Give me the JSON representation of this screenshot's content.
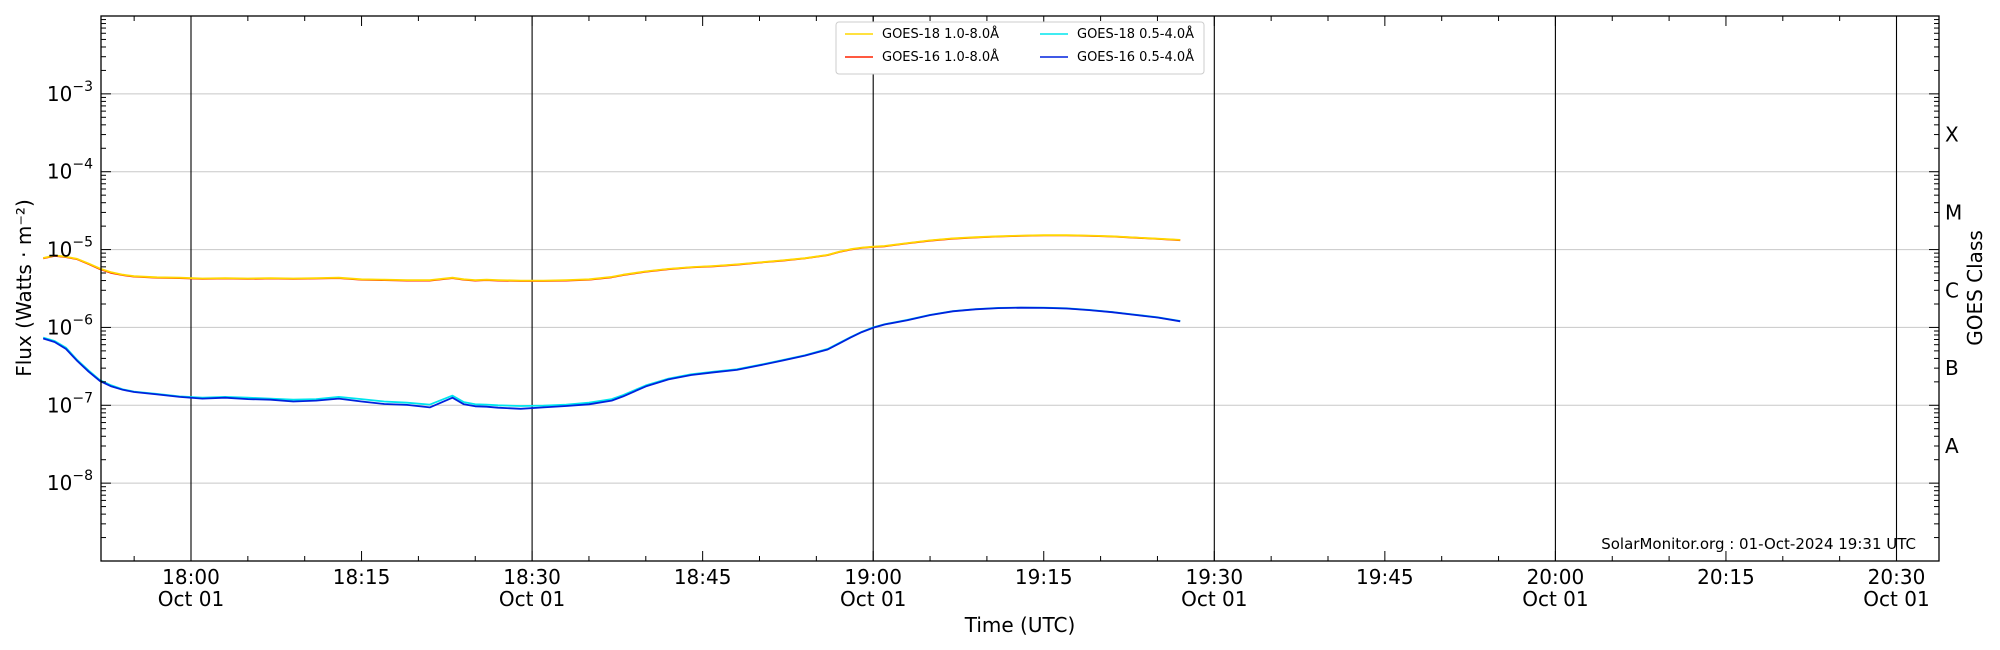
{
  "chart_data": {
    "type": "line",
    "ylabel": "Flux (Watts · m⁻²)",
    "xlabel": "Time (UTC)",
    "right_label": "GOES Class",
    "credit": "SolarMonitor.org : 01-Oct-2024 19:31 UTC",
    "yscale": "log",
    "ylim": [
      1e-09,
      0.01
    ],
    "xlim": [
      "17:47",
      "20:32"
    ],
    "grid": "horizontal major + vertical at hours/half-hours",
    "legend_position": "top-center",
    "y_ticks": [
      {
        "value": 1e-08,
        "base": "10",
        "exp": "−8"
      },
      {
        "value": 1e-07,
        "base": "10",
        "exp": "−7"
      },
      {
        "value": 1e-06,
        "base": "10",
        "exp": "−6"
      },
      {
        "value": 1e-05,
        "base": "10",
        "exp": "−5"
      },
      {
        "value": 0.0001,
        "base": "10",
        "exp": "−4"
      },
      {
        "value": 0.001,
        "base": "10",
        "exp": "−3"
      }
    ],
    "x_ticks": [
      {
        "time": "18:00",
        "label": "18:00",
        "sublabel": "Oct 01"
      },
      {
        "time": "18:15",
        "label": "18:15",
        "sublabel": ""
      },
      {
        "time": "18:30",
        "label": "18:30",
        "sublabel": "Oct 01"
      },
      {
        "time": "18:45",
        "label": "18:45",
        "sublabel": ""
      },
      {
        "time": "19:00",
        "label": "19:00",
        "sublabel": "Oct 01"
      },
      {
        "time": "19:15",
        "label": "19:15",
        "sublabel": ""
      },
      {
        "time": "19:30",
        "label": "19:30",
        "sublabel": "Oct 01"
      },
      {
        "time": "19:45",
        "label": "19:45",
        "sublabel": ""
      },
      {
        "time": "20:00",
        "label": "20:00",
        "sublabel": "Oct 01"
      },
      {
        "time": "20:15",
        "label": "20:15",
        "sublabel": ""
      },
      {
        "time": "20:30",
        "label": "20:30",
        "sublabel": "Oct 01"
      }
    ],
    "vertical_lines": [
      "18:00",
      "18:30",
      "19:00",
      "19:30",
      "20:00",
      "20:30"
    ],
    "goes_classes": [
      {
        "label": "A",
        "value": 3e-08
      },
      {
        "label": "B",
        "value": 3e-07
      },
      {
        "label": "C",
        "value": 3e-06
      },
      {
        "label": "M",
        "value": 3e-05
      },
      {
        "label": "X",
        "value": 0.0003
      }
    ],
    "legend": [
      {
        "name": "GOES-18 1.0-8.0Å",
        "color": "#ffd700"
      },
      {
        "name": "GOES-18 0.5-4.0Å",
        "color": "#00e5ee"
      },
      {
        "name": "GOES-16 1.0-8.0Å",
        "color": "#ff2200"
      },
      {
        "name": "GOES-16 0.5-4.0Å",
        "color": "#0022dd"
      }
    ],
    "x": [
      "17:47",
      "17:48",
      "17:49",
      "17:50",
      "17:51",
      "17:52",
      "17:53",
      "17:54",
      "17:55",
      "17:57",
      "17:59",
      "18:01",
      "18:03",
      "18:05",
      "18:07",
      "18:09",
      "18:11",
      "18:13",
      "18:15",
      "18:17",
      "18:19",
      "18:21",
      "18:23",
      "18:24",
      "18:25",
      "18:26",
      "18:27",
      "18:29",
      "18:31",
      "18:33",
      "18:35",
      "18:37",
      "18:38",
      "18:40",
      "18:42",
      "18:44",
      "18:46",
      "18:48",
      "18:50",
      "18:52",
      "18:54",
      "18:56",
      "18:57",
      "18:58",
      "18:59",
      "19:00",
      "19:01",
      "19:03",
      "19:05",
      "19:07",
      "19:09",
      "19:11",
      "19:13",
      "19:15",
      "19:17",
      "19:19",
      "19:21",
      "19:23",
      "19:25",
      "19:27"
    ],
    "series": [
      {
        "name": "GOES-16 1.0-8.0Å",
        "color": "#ff2200",
        "values": [
          7.7e-06,
          8.3e-06,
          8e-06,
          7.5e-06,
          6.5e-06,
          5.6e-06,
          5e-06,
          4.7e-06,
          4.5e-06,
          4.35e-06,
          4.3e-06,
          4.2e-06,
          4.25e-06,
          4.2e-06,
          4.25e-06,
          4.2e-06,
          4.25e-06,
          4.3e-06,
          4.1e-06,
          4.05e-06,
          4e-06,
          4e-06,
          4.3e-06,
          4.1e-06,
          4e-06,
          4.05e-06,
          4e-06,
          3.95e-06,
          3.95e-06,
          4e-06,
          4.1e-06,
          4.4e-06,
          4.7e-06,
          5.2e-06,
          5.6e-06,
          5.9e-06,
          6.1e-06,
          6.4e-06,
          6.8e-06,
          7.2e-06,
          7.7e-06,
          8.5e-06,
          9.3e-06,
          1e-05,
          1.05e-05,
          1.08e-05,
          1.1e-05,
          1.2e-05,
          1.3e-05,
          1.38e-05,
          1.43e-05,
          1.47e-05,
          1.5e-05,
          1.52e-05,
          1.52e-05,
          1.5e-05,
          1.47e-05,
          1.42e-05,
          1.37e-05,
          1.32e-05
        ]
      },
      {
        "name": "GOES-18 1.0-8.0Å",
        "color": "#ffd700",
        "values": [
          7.8e-06,
          8.4e-06,
          8.1e-06,
          7.6e-06,
          6.6e-06,
          5.7e-06,
          5.1e-06,
          4.75e-06,
          4.55e-06,
          4.4e-06,
          4.35e-06,
          4.25e-06,
          4.3e-06,
          4.25e-06,
          4.3e-06,
          4.25e-06,
          4.3e-06,
          4.35e-06,
          4.15e-06,
          4.1e-06,
          4.05e-06,
          4.05e-06,
          4.35e-06,
          4.15e-06,
          4.05e-06,
          4.1e-06,
          4.05e-06,
          4e-06,
          4e-06,
          4.05e-06,
          4.15e-06,
          4.45e-06,
          4.75e-06,
          5.25e-06,
          5.65e-06,
          5.95e-06,
          6.15e-06,
          6.45e-06,
          6.85e-06,
          7.25e-06,
          7.75e-06,
          8.55e-06,
          9.35e-06,
          1.01e-05,
          1.06e-05,
          1.09e-05,
          1.11e-05,
          1.21e-05,
          1.31e-05,
          1.39e-05,
          1.44e-05,
          1.48e-05,
          1.51e-05,
          1.53e-05,
          1.53e-05,
          1.51e-05,
          1.48e-05,
          1.43e-05,
          1.38e-05,
          1.33e-05
        ]
      },
      {
        "name": "GOES-18 0.5-4.0Å",
        "color": "#00e5ee",
        "values": [
          7.4e-07,
          6.7e-07,
          5.5e-07,
          3.8e-07,
          2.8e-07,
          2.1e-07,
          1.8e-07,
          1.6e-07,
          1.5e-07,
          1.4e-07,
          1.3e-07,
          1.25e-07,
          1.28e-07,
          1.25e-07,
          1.22e-07,
          1.18e-07,
          1.2e-07,
          1.28e-07,
          1.2e-07,
          1.12e-07,
          1.08e-07,
          1.02e-07,
          1.33e-07,
          1.1e-07,
          1.03e-07,
          1.02e-07,
          1e-07,
          9.8e-08,
          9.9e-08,
          1.02e-07,
          1.08e-07,
          1.2e-07,
          1.35e-07,
          1.8e-07,
          2.2e-07,
          2.5e-07,
          2.7e-07,
          2.9e-07,
          3.3e-07,
          3.8e-07,
          4.4e-07,
          5.3e-07,
          6.3e-07,
          7.5e-07,
          8.8e-07,
          1e-06,
          1.1e-06,
          1.25e-06,
          1.45e-06,
          1.62e-06,
          1.72e-06,
          1.78e-06,
          1.8e-06,
          1.79e-06,
          1.76e-06,
          1.68e-06,
          1.58e-06,
          1.46e-06,
          1.35e-06,
          1.21e-06
        ]
      },
      {
        "name": "GOES-16 0.5-4.0Å",
        "color": "#0022dd",
        "values": [
          7.2e-07,
          6.5e-07,
          5.3e-07,
          3.7e-07,
          2.7e-07,
          2.05e-07,
          1.75e-07,
          1.58e-07,
          1.48e-07,
          1.38e-07,
          1.28e-07,
          1.22e-07,
          1.25e-07,
          1.2e-07,
          1.18e-07,
          1.12e-07,
          1.15e-07,
          1.22e-07,
          1.12e-07,
          1.04e-07,
          1.01e-07,
          9.4e-08,
          1.25e-07,
          1.03e-07,
          9.7e-08,
          9.6e-08,
          9.3e-08,
          9e-08,
          9.4e-08,
          9.8e-08,
          1.03e-07,
          1.15e-07,
          1.3e-07,
          1.75e-07,
          2.15e-07,
          2.45e-07,
          2.65e-07,
          2.85e-07,
          3.25e-07,
          3.75e-07,
          4.35e-07,
          5.2e-07,
          6.2e-07,
          7.4e-07,
          8.7e-07,
          9.9e-07,
          1.09e-06,
          1.24e-06,
          1.44e-06,
          1.61e-06,
          1.71e-06,
          1.77e-06,
          1.79e-06,
          1.78e-06,
          1.75e-06,
          1.67e-06,
          1.57e-06,
          1.45e-06,
          1.34e-06,
          1.2e-06
        ]
      }
    ]
  }
}
